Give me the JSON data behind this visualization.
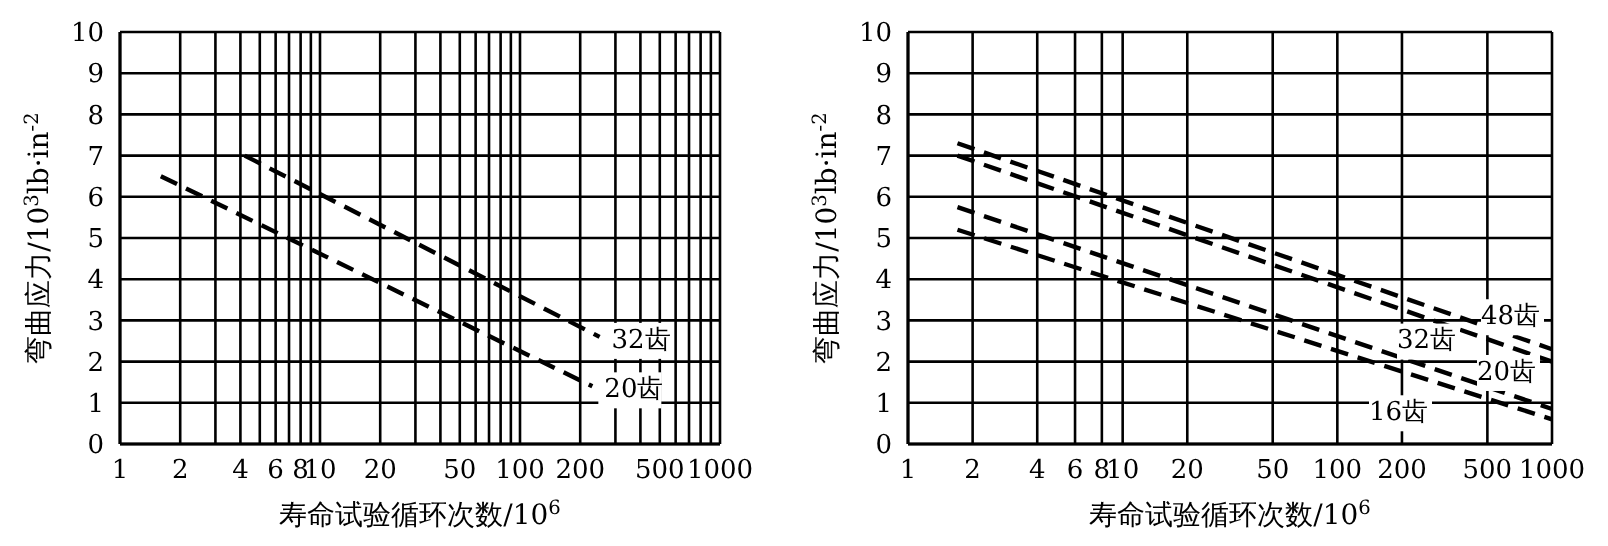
{
  "chart_data": [
    {
      "type": "line",
      "xlabel": "寿命试验循环次数/10$^{6}$",
      "ylabel": "弯曲应力/10$^{3}$lb·in$^{-2}$",
      "log": "x",
      "grid": true,
      "legend": false,
      "marker": "none",
      "line_style": "dashed",
      "xlim": [
        1,
        1000
      ],
      "ylim": [
        0,
        10
      ],
      "xticks": [
        1,
        2,
        {
          "value": 3,
          "label": null
        },
        4,
        {
          "value": 5,
          "label": null
        },
        6,
        {
          "value": 7,
          "label": null
        },
        8,
        {
          "value": 9,
          "label": null
        },
        10,
        20,
        {
          "value": 30,
          "label": null
        },
        {
          "value": 40,
          "label": null
        },
        50,
        {
          "value": 60,
          "label": null
        },
        {
          "value": 70,
          "label": null
        },
        {
          "value": 80,
          "label": null
        },
        {
          "value": 90,
          "label": null
        },
        100,
        200,
        {
          "value": 300,
          "label": null
        },
        {
          "value": 400,
          "label": null
        },
        500,
        {
          "value": 600,
          "label": null
        },
        {
          "value": 700,
          "label": null
        },
        {
          "value": 800,
          "label": null
        },
        {
          "value": 900,
          "label": null
        },
        1000
      ],
      "yticks": [
        0,
        1,
        2,
        3,
        4,
        5,
        6,
        7,
        8,
        9,
        10
      ],
      "series": [
        {
          "name": "32齿",
          "color": "#000000",
          "x": [
            4.2,
            250
          ],
          "values": [
            7.0,
            2.6
          ]
        },
        {
          "name": "20齿",
          "color": "#000000",
          "x": [
            1.6,
            230
          ],
          "values": [
            6.5,
            1.4
          ]
        }
      ]
    },
    {
      "type": "line",
      "xlabel": "寿命试验循环次数/10$^{6}$",
      "ylabel": "弯曲应力/10$^{3}$lb·in$^{-2}$",
      "log": "x",
      "grid": true,
      "legend": false,
      "marker": "none",
      "line_style": "dashed",
      "xlim": [
        1,
        1000
      ],
      "ylim": [
        0,
        10
      ],
      "xticks": [
        1,
        2,
        4,
        6,
        8,
        10,
        20,
        50,
        100,
        200,
        500,
        1000
      ],
      "yticks": [
        0,
        1,
        2,
        3,
        4,
        5,
        6,
        7,
        8,
        9,
        10
      ],
      "series": [
        {
          "name": "48齿",
          "color": "#000000",
          "x": [
            1.7,
            1000
          ],
          "values": [
            7.3,
            2.3
          ]
        },
        {
          "name": "32齿",
          "color": "#000000",
          "x": [
            1.7,
            1000
          ],
          "values": [
            7.0,
            2.0
          ]
        },
        {
          "name": "20齿",
          "color": "#000000",
          "x": [
            1.7,
            1000
          ],
          "values": [
            5.75,
            0.85
          ]
        },
        {
          "name": "16齿",
          "color": "#000000",
          "x": [
            1.7,
            1000
          ],
          "values": [
            5.2,
            0.6
          ]
        }
      ]
    }
  ]
}
